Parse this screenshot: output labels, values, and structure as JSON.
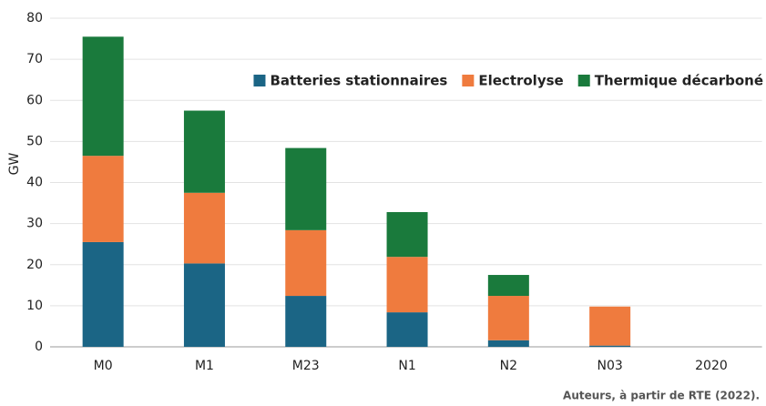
{
  "chart_data": {
    "type": "stacked_bar",
    "y_label": "GW",
    "source": "Auteurs, à partir de RTE (2022).",
    "categories": [
      "M0",
      "M1",
      "M23",
      "N1",
      "N2",
      "N03",
      "2020"
    ],
    "series": [
      {
        "name": "Batteries stationnaires",
        "color": "#1b6585",
        "values": [
          25.5,
          20.3,
          12.4,
          8.4,
          1.6,
          0.3,
          0
        ]
      },
      {
        "name": "Electrolyse",
        "color": "#ef7b3e",
        "values": [
          21,
          17.2,
          16,
          13.5,
          10.8,
          9.5,
          0
        ]
      },
      {
        "name": "Thermique décarboné",
        "color": "#1a7a3c",
        "values": [
          29,
          20,
          20,
          10.9,
          5.1,
          0,
          0
        ]
      }
    ],
    "ylim": [
      0,
      80
    ],
    "yticks": [
      0,
      10,
      20,
      30,
      40,
      50,
      60,
      70,
      80
    ],
    "grid": true
  }
}
